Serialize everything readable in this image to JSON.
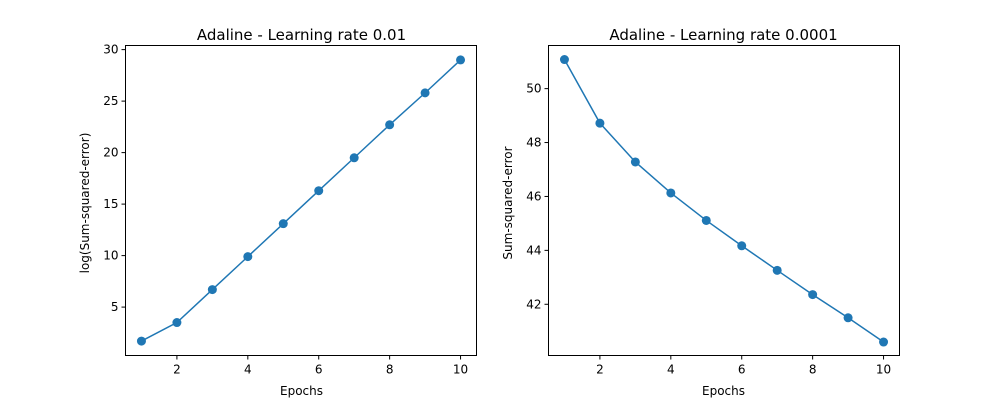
{
  "colors": {
    "series": "#1f77b4",
    "background": "#ffffff",
    "axes": "#000000"
  },
  "chart_data": [
    {
      "type": "line",
      "marker": "circle",
      "title": "Adaline - Learning rate 0.01",
      "xlabel": "Epochs",
      "ylabel": "log(Sum-squared-error)",
      "xlim": [
        0.55,
        10.45
      ],
      "ylim": [
        0.3,
        30.4
      ],
      "xticks": [
        2,
        4,
        6,
        8,
        10
      ],
      "yticks": [
        5,
        10,
        15,
        20,
        25,
        30
      ],
      "grid": false,
      "series": [
        {
          "x": [
            1,
            2,
            3,
            4,
            5,
            6,
            7,
            8,
            9,
            10
          ],
          "values": [
            1.7,
            3.5,
            6.7,
            9.9,
            13.1,
            16.3,
            19.5,
            22.7,
            25.8,
            29.0
          ]
        }
      ]
    },
    {
      "type": "line",
      "marker": "circle",
      "title": "Adaline - Learning rate 0.0001",
      "xlabel": "Epochs",
      "ylabel": "Sum-squared-error",
      "xlim": [
        0.55,
        10.45
      ],
      "ylim": [
        40.1,
        51.6
      ],
      "xticks": [
        2,
        4,
        6,
        8,
        10
      ],
      "yticks": [
        42,
        44,
        46,
        48,
        50
      ],
      "grid": false,
      "series": [
        {
          "x": [
            1,
            2,
            3,
            4,
            5,
            6,
            7,
            8,
            9,
            10
          ],
          "values": [
            51.08,
            48.72,
            47.28,
            46.13,
            45.11,
            44.17,
            43.26,
            42.36,
            41.5,
            40.6
          ]
        }
      ]
    }
  ]
}
